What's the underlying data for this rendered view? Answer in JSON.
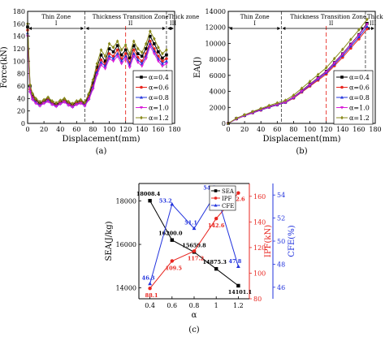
{
  "chart_data": [
    {
      "type": "line",
      "panel_label": "(a)",
      "xlabel": "Displacement(mm)",
      "ylabel": "Force(kN)",
      "xlim": [
        0,
        180
      ],
      "ylim": [
        0,
        180
      ],
      "xticks": [
        0,
        20,
        40,
        60,
        80,
        100,
        120,
        140,
        160,
        180
      ],
      "yticks": [
        0,
        20,
        40,
        60,
        80,
        100,
        120,
        140,
        160,
        180
      ],
      "grid": false,
      "legend_position": "bottom-right",
      "zones": [
        {
          "name": "Thin Zone",
          "numeral": "I"
        },
        {
          "name": "Thickness Transition Zone",
          "numeral": "II"
        },
        {
          "name": "Thick zone",
          "numeral": "III"
        }
      ],
      "zone_boundaries": [
        70,
        170
      ],
      "marker_line": 120,
      "x": [
        0,
        3,
        6,
        10,
        15,
        20,
        25,
        30,
        35,
        40,
        45,
        50,
        55,
        60,
        65,
        70,
        75,
        80,
        85,
        90,
        95,
        100,
        105,
        110,
        115,
        120,
        125,
        130,
        135,
        140,
        145,
        150,
        155,
        160,
        165,
        170
      ],
      "series": [
        {
          "name": "α=0.4",
          "color": "#000000",
          "marker": "square",
          "values": [
            155,
            60,
            45,
            38,
            32,
            36,
            40,
            34,
            30,
            35,
            38,
            33,
            30,
            34,
            36,
            32,
            45,
            65,
            90,
            110,
            100,
            120,
            115,
            125,
            110,
            118,
            105,
            125,
            112,
            108,
            120,
            140,
            128,
            115,
            105,
            110
          ]
        },
        {
          "name": "α=0.6",
          "color": "#e8251f",
          "marker": "circle",
          "values": [
            150,
            55,
            42,
            35,
            30,
            34,
            38,
            32,
            29,
            33,
            36,
            31,
            28,
            32,
            34,
            30,
            42,
            60,
            85,
            102,
            95,
            112,
            108,
            118,
            104,
            112,
            98,
            118,
            106,
            100,
            112,
            132,
            120,
            108,
            100,
            104
          ]
        },
        {
          "name": "α=0.8",
          "color": "#2233dd",
          "marker": "triangle-up",
          "values": [
            145,
            52,
            40,
            34,
            29,
            33,
            37,
            31,
            28,
            32,
            35,
            30,
            27,
            31,
            33,
            29,
            40,
            58,
            82,
            98,
            92,
            108,
            104,
            112,
            100,
            108,
            94,
            112,
            102,
            96,
            108,
            128,
            116,
            104,
            96,
            100
          ]
        },
        {
          "name": "α=1.0",
          "color": "#d81ed8",
          "marker": "triangle-down",
          "values": [
            140,
            50,
            38,
            32,
            28,
            32,
            35,
            30,
            27,
            31,
            34,
            29,
            26,
            30,
            32,
            28,
            38,
            55,
            78,
            94,
            88,
            104,
            100,
            108,
            96,
            104,
            90,
            108,
            98,
            92,
            104,
            124,
            112,
            100,
            92,
            96
          ]
        },
        {
          "name": "α=1.2",
          "color": "#8a8a1a",
          "marker": "diamond",
          "values": [
            160,
            62,
            48,
            40,
            35,
            38,
            42,
            36,
            33,
            37,
            40,
            35,
            32,
            36,
            38,
            34,
            48,
            70,
            96,
            118,
            108,
            128,
            122,
            132,
            118,
            126,
            112,
            132,
            120,
            114,
            128,
            148,
            136,
            122,
            112,
            118
          ]
        }
      ]
    },
    {
      "type": "line",
      "panel_label": "(b)",
      "xlabel": "Displacement(mm)",
      "ylabel": "EA(J)",
      "xlim": [
        0,
        180
      ],
      "ylim": [
        0,
        14000
      ],
      "xticks": [
        0,
        20,
        40,
        60,
        80,
        100,
        120,
        140,
        160,
        180
      ],
      "yticks": [
        0,
        2000,
        4000,
        6000,
        8000,
        10000,
        12000,
        14000
      ],
      "grid": false,
      "legend_position": "bottom-right",
      "zones": [
        {
          "name": "Thin Zone",
          "numeral": "I"
        },
        {
          "name": "Thickness Transition Zone",
          "numeral": "II"
        },
        {
          "name": "Thick zone",
          "numeral": "III"
        }
      ],
      "zone_boundaries": [
        65,
        168
      ],
      "marker_line": 120,
      "x": [
        0,
        10,
        20,
        30,
        40,
        50,
        60,
        70,
        80,
        90,
        100,
        110,
        120,
        130,
        140,
        150,
        160,
        170
      ],
      "series": [
        {
          "name": "α=0.4",
          "color": "#000000",
          "marker": "square",
          "values": [
            0,
            600,
            1000,
            1400,
            1750,
            2100,
            2400,
            2700,
            3300,
            4100,
            4900,
            5700,
            6500,
            7600,
            8700,
            9900,
            11100,
            12500
          ]
        },
        {
          "name": "α=0.6",
          "color": "#e8251f",
          "marker": "circle",
          "values": [
            0,
            550,
            950,
            1300,
            1650,
            2000,
            2300,
            2600,
            3150,
            3900,
            4650,
            5400,
            6150,
            7200,
            8250,
            9400,
            10550,
            11800
          ]
        },
        {
          "name": "α=0.8",
          "color": "#2233dd",
          "marker": "triangle-up",
          "values": [
            0,
            560,
            960,
            1320,
            1670,
            2020,
            2320,
            2620,
            3200,
            3980,
            4760,
            5540,
            6320,
            7400,
            8480,
            9650,
            10800,
            12100
          ]
        },
        {
          "name": "α=1.0",
          "color": "#d81ed8",
          "marker": "triangle-down",
          "values": [
            0,
            580,
            980,
            1350,
            1700,
            2050,
            2360,
            2660,
            3260,
            4050,
            4850,
            5650,
            6450,
            7550,
            8650,
            9850,
            11050,
            12400
          ]
        },
        {
          "name": "α=1.2",
          "color": "#8a8a1a",
          "marker": "diamond",
          "values": [
            0,
            650,
            1080,
            1480,
            1860,
            2230,
            2560,
            2880,
            3520,
            4380,
            5240,
            6100,
            6960,
            8100,
            9250,
            10480,
            11700,
            13000
          ]
        }
      ]
    },
    {
      "type": "line",
      "panel_label": "(c)",
      "xlabel": "α",
      "ylabel": "SEA(J/kg)",
      "ylabel_right": "IPF(kN)",
      "ylabel_right2": "CFE(%)",
      "xlim": [
        0.3,
        1.3
      ],
      "ylim": [
        13500,
        18800
      ],
      "ylim_right": [
        80,
        170
      ],
      "ylim_right2": [
        45,
        55
      ],
      "xticks": [
        0.4,
        0.6,
        0.8,
        1.0,
        1.2
      ],
      "yticks": [
        14000,
        16000,
        18000
      ],
      "yticks_right": [
        80,
        100,
        120,
        140,
        160
      ],
      "yticks_right2": [
        46,
        48,
        50,
        52,
        54
      ],
      "legend_position": "top-left",
      "categories": [
        0.4,
        0.6,
        0.8,
        1.0,
        1.2
      ],
      "series": [
        {
          "name": "SEA",
          "color": "#000000",
          "marker": "square",
          "axis": "left",
          "values": [
            18008.4,
            16200.0,
            15650.8,
            14875.3,
            14101.1
          ],
          "labels": [
            "18008.4",
            "16200.0",
            "15650.8",
            "14875.3",
            "14101.1"
          ]
        },
        {
          "name": "IPF",
          "color": "#e8251f",
          "marker": "circle",
          "axis": "right",
          "values": [
            88.1,
            109.5,
            117.2,
            142.6,
            162.6
          ],
          "labels": [
            "88.1",
            "109.5",
            "117.2",
            "142.6",
            "162.6"
          ]
        },
        {
          "name": "CFE",
          "color": "#2233dd",
          "marker": "triangle-up",
          "axis": "right2",
          "values": [
            46.3,
            53.2,
            51.1,
            54.2,
            47.8
          ],
          "labels": [
            "46.3",
            "53.2",
            "51.1",
            "54.2",
            "47.8"
          ]
        }
      ]
    }
  ]
}
